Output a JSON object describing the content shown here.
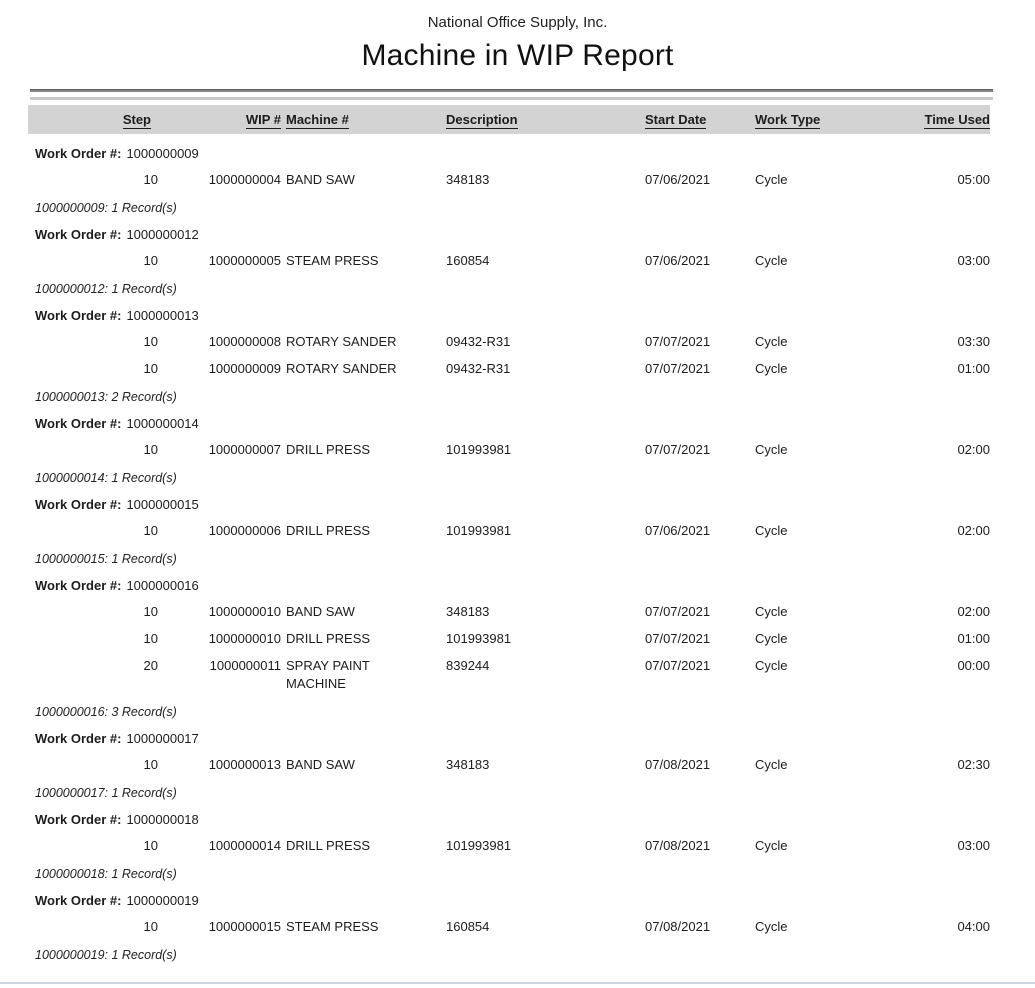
{
  "report": {
    "company": "National Office Supply, Inc.",
    "title": "Machine in WIP Report"
  },
  "colors": {
    "header_band": "#d3d3d3",
    "rule_dark": "#848484",
    "rule_light": "#c9c9c9",
    "bottom_edge": "#cdd6de",
    "text": "#1c1c1c"
  },
  "table": {
    "columns": [
      {
        "key": "step",
        "label": "Step"
      },
      {
        "key": "wip",
        "label": "WIP #"
      },
      {
        "key": "machine",
        "label": "Machine #"
      },
      {
        "key": "description",
        "label": "Description"
      },
      {
        "key": "start_date",
        "label": "Start Date"
      },
      {
        "key": "work_type",
        "label": "Work Type"
      },
      {
        "key": "time_used",
        "label": "Time Used"
      }
    ],
    "work_order_label": "Work Order #:",
    "groups": [
      {
        "work_order": "1000000009",
        "rows": [
          {
            "step": "10",
            "wip": "1000000004",
            "machine": "BAND SAW",
            "description": "348183",
            "start_date": "07/06/2021",
            "work_type": "Cycle",
            "time_used": "05:00"
          }
        ],
        "summary": "1000000009: 1 Record(s)"
      },
      {
        "work_order": "1000000012",
        "rows": [
          {
            "step": "10",
            "wip": "1000000005",
            "machine": "STEAM PRESS",
            "description": "160854",
            "start_date": "07/06/2021",
            "work_type": "Cycle",
            "time_used": "03:00"
          }
        ],
        "summary": "1000000012: 1 Record(s)"
      },
      {
        "work_order": "1000000013",
        "rows": [
          {
            "step": "10",
            "wip": "1000000008",
            "machine": "ROTARY SANDER",
            "description": "09432-R31",
            "start_date": "07/07/2021",
            "work_type": "Cycle",
            "time_used": "03:30"
          },
          {
            "step": "10",
            "wip": "1000000009",
            "machine": "ROTARY SANDER",
            "description": "09432-R31",
            "start_date": "07/07/2021",
            "work_type": "Cycle",
            "time_used": "01:00"
          }
        ],
        "summary": "1000000013: 2 Record(s)"
      },
      {
        "work_order": "1000000014",
        "rows": [
          {
            "step": "10",
            "wip": "1000000007",
            "machine": "DRILL PRESS",
            "description": "101993981",
            "start_date": "07/07/2021",
            "work_type": "Cycle",
            "time_used": "02:00"
          }
        ],
        "summary": "1000000014: 1 Record(s)"
      },
      {
        "work_order": "1000000015",
        "rows": [
          {
            "step": "10",
            "wip": "1000000006",
            "machine": "DRILL PRESS",
            "description": "101993981",
            "start_date": "07/06/2021",
            "work_type": "Cycle",
            "time_used": "02:00"
          }
        ],
        "summary": "1000000015: 1 Record(s)"
      },
      {
        "work_order": "1000000016",
        "rows": [
          {
            "step": "10",
            "wip": "1000000010",
            "machine": "BAND SAW",
            "description": "348183",
            "start_date": "07/07/2021",
            "work_type": "Cycle",
            "time_used": "02:00"
          },
          {
            "step": "10",
            "wip": "1000000010",
            "machine": "DRILL PRESS",
            "description": "101993981",
            "start_date": "07/07/2021",
            "work_type": "Cycle",
            "time_used": "01:00"
          },
          {
            "step": "20",
            "wip": "1000000011",
            "machine": "SPRAY PAINT MACHINE",
            "description": "839244",
            "start_date": "07/07/2021",
            "work_type": "Cycle",
            "time_used": "00:00"
          }
        ],
        "summary": "1000000016: 3 Record(s)"
      },
      {
        "work_order": "1000000017",
        "rows": [
          {
            "step": "10",
            "wip": "1000000013",
            "machine": "BAND SAW",
            "description": "348183",
            "start_date": "07/08/2021",
            "work_type": "Cycle",
            "time_used": "02:30"
          }
        ],
        "summary": "1000000017: 1 Record(s)"
      },
      {
        "work_order": "1000000018",
        "rows": [
          {
            "step": "10",
            "wip": "1000000014",
            "machine": "DRILL PRESS",
            "description": "101993981",
            "start_date": "07/08/2021",
            "work_type": "Cycle",
            "time_used": "03:00"
          }
        ],
        "summary": "1000000018: 1 Record(s)"
      },
      {
        "work_order": "1000000019",
        "rows": [
          {
            "step": "10",
            "wip": "1000000015",
            "machine": "STEAM PRESS",
            "description": "160854",
            "start_date": "07/08/2021",
            "work_type": "Cycle",
            "time_used": "04:00"
          }
        ],
        "summary": "1000000019: 1 Record(s)"
      }
    ]
  }
}
